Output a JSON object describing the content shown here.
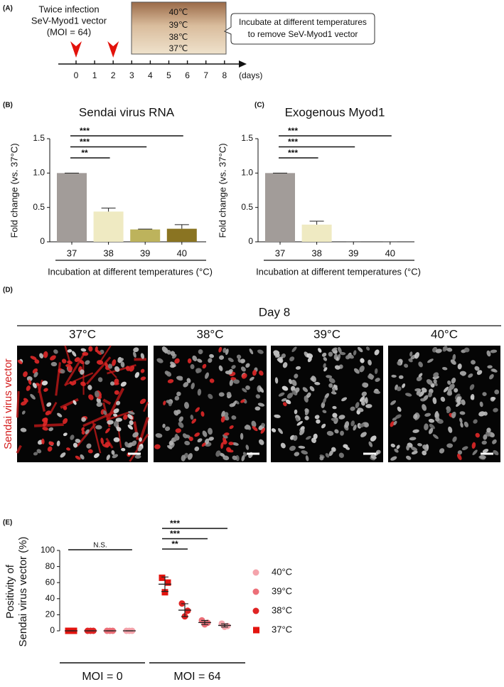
{
  "panel_a": {
    "label": "(A)",
    "infection_text": [
      "Twice infection",
      "SeV-Myod1 vector",
      "(MOI = 64)"
    ],
    "temperatures": [
      "40℃",
      "39℃",
      "38℃",
      "37℃"
    ],
    "callout": [
      "Incubate at different temperatures",
      "to remove SeV-Myod1 vector"
    ],
    "days": [
      0,
      1,
      2,
      3,
      4,
      5,
      6,
      7,
      8
    ],
    "unit": "(days)",
    "infection_days": [
      0,
      2
    ]
  },
  "panel_d": {
    "label": "(D)",
    "title": "Day 8",
    "columns": [
      "37°C",
      "38°C",
      "39°C",
      "40°C"
    ],
    "row_label": "Sendai virus vector"
  },
  "chart_data": [
    {
      "type": "bar",
      "panel_label": "(B)",
      "title": "Sendai virus RNA",
      "categories": [
        "37",
        "38",
        "39",
        "40"
      ],
      "values": [
        1,
        0.44,
        0.18,
        0.19
      ],
      "errors": [
        0,
        0.05,
        0.005,
        0.06
      ],
      "colors": [
        "#a29c99",
        "#efeac2",
        "#bdb35c",
        "#8a7422"
      ],
      "ylim": [
        0,
        1.5
      ],
      "yticks": [
        0,
        0.5,
        {
          "value": 1,
          "label": "1.0"
        },
        1.5
      ],
      "ylabel": "Fold change (vs. 37°C)",
      "xlabel": "Incubation at different temperatures (°C)",
      "significance": [
        {
          "pairs": [
            0,
            3
          ],
          "label": "***"
        },
        {
          "pairs": [
            0,
            2
          ],
          "label": "***"
        },
        {
          "pairs": [
            0,
            1
          ],
          "label": "**"
        }
      ]
    },
    {
      "type": "bar",
      "panel_label": "(C)",
      "title": "Exogenous Myod1",
      "categories": [
        "37",
        "38",
        "39",
        "40"
      ],
      "values": [
        1,
        0.25,
        0,
        0
      ],
      "errors": [
        0,
        0.05,
        0,
        0
      ],
      "colors": [
        "#a29c99",
        "#efeac2",
        "#bdb35c",
        "#8a7422"
      ],
      "ylim": [
        0,
        1.5
      ],
      "yticks": [
        0,
        0.5,
        {
          "value": 1,
          "label": "1.0"
        },
        1.5
      ],
      "ylabel": "Fold change (vs. 37°C)",
      "xlabel": "Incubation at different temperatures (°C)",
      "significance": [
        {
          "pairs": [
            0,
            3
          ],
          "label": "***"
        },
        {
          "pairs": [
            0,
            2
          ],
          "label": "***"
        },
        {
          "pairs": [
            0,
            1
          ],
          "label": "***"
        }
      ]
    },
    {
      "type": "scatter",
      "panel_label": "(E)",
      "ylabel": [
        "Positivity of",
        "Sendai virus vector (%)"
      ],
      "groups": [
        "MOI = 0",
        "MOI = 64"
      ],
      "series": [
        {
          "name": "40°C",
          "color": "#f4a3ab",
          "marker": "circle",
          "values": [
            [
              0,
              0,
              0
            ],
            [
              9,
              6,
              5
            ]
          ],
          "means": [
            0,
            6.7
          ],
          "errors": [
            0,
            2
          ]
        },
        {
          "name": "39°C",
          "color": "#ec6f78",
          "marker": "circle",
          "values": [
            [
              0,
              0,
              0
            ],
            [
              13,
              10,
              8
            ]
          ],
          "means": [
            0,
            10.3
          ],
          "errors": [
            0,
            2.5
          ]
        },
        {
          "name": "38°C",
          "color": "#e02424",
          "marker": "circle",
          "values": [
            [
              0,
              0,
              0
            ],
            [
              34,
              25,
              18
            ]
          ],
          "means": [
            0,
            25.7
          ],
          "errors": [
            0,
            8
          ]
        },
        {
          "name": "37°C",
          "color": "#e3140f",
          "marker": "square",
          "values": [
            [
              0,
              0,
              0
            ],
            [
              66,
              60,
              48
            ]
          ],
          "means": [
            0,
            58
          ],
          "errors": [
            0,
            9
          ]
        }
      ],
      "ylim": [
        0,
        100
      ],
      "yticks": [
        0,
        20,
        40,
        60,
        80,
        100
      ],
      "significance": [
        {
          "group": 0,
          "pairs": [
            3,
            0
          ],
          "label": "N.S."
        },
        {
          "group": 1,
          "pairs": [
            3,
            0
          ],
          "label": "***"
        },
        {
          "group": 1,
          "pairs": [
            3,
            1
          ],
          "label": "***"
        },
        {
          "group": 1,
          "pairs": [
            3,
            2
          ],
          "label": "**"
        }
      ]
    }
  ]
}
